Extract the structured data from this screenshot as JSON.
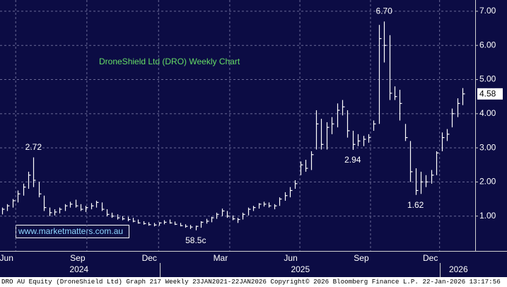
{
  "chart_data": {
    "type": "ohlc",
    "title": "DroneShield Ltd (DRO) Weekly Chart",
    "watermark": "www.marketmatters.com.au",
    "source": "DRO AU Equity (DroneShield Ltd) Graph 217 Weekly 23JAN2021-22JAN2026 Copyright© 2026 Bloomberg Finance L.P. 22-Jan-2026 13:17:56",
    "color": "#ffffff",
    "high": [
      1.25,
      1.35,
      1.5,
      1.75,
      1.95,
      2.3,
      2.72,
      2.0,
      1.6,
      1.25,
      1.2,
      1.25,
      1.35,
      1.42,
      1.48,
      1.35,
      1.3,
      1.38,
      1.45,
      1.4,
      1.2,
      1.1,
      1.05,
      1.0,
      0.98,
      0.95,
      0.9,
      0.85,
      0.82,
      0.8,
      0.82,
      0.88,
      0.9,
      0.84,
      0.8,
      0.76,
      0.74,
      0.72,
      0.85,
      0.92,
      0.98,
      1.1,
      1.22,
      1.15,
      1.02,
      0.95,
      1.1,
      1.25,
      1.3,
      1.38,
      1.42,
      1.4,
      1.35,
      1.55,
      1.7,
      1.85,
      2.05,
      2.6,
      2.65,
      2.9,
      4.1,
      3.85,
      3.75,
      3.9,
      4.3,
      4.4,
      4.1,
      3.5,
      3.4,
      3.35,
      3.4,
      3.8,
      6.6,
      6.7,
      6.3,
      4.8,
      4.7,
      3.7,
      3.2,
      2.4,
      2.3,
      2.2,
      2.35,
      2.9,
      3.45,
      3.55,
      4.15,
      4.45,
      4.75
    ],
    "low": [
      1.05,
      1.15,
      1.25,
      1.4,
      1.6,
      1.8,
      1.85,
      1.55,
      1.15,
      1.0,
      1.02,
      1.08,
      1.15,
      1.25,
      1.25,
      1.15,
      1.12,
      1.2,
      1.25,
      1.15,
      1.0,
      0.95,
      0.9,
      0.88,
      0.85,
      0.82,
      0.78,
      0.75,
      0.72,
      0.7,
      0.72,
      0.76,
      0.78,
      0.74,
      0.7,
      0.66,
      0.62,
      0.585,
      0.66,
      0.78,
      0.82,
      0.92,
      1.0,
      0.95,
      0.88,
      0.8,
      0.9,
      1.02,
      1.15,
      1.22,
      1.28,
      1.25,
      1.2,
      1.3,
      1.45,
      1.55,
      1.8,
      2.2,
      2.3,
      2.35,
      2.95,
      2.95,
      2.95,
      3.4,
      3.6,
      3.95,
      3.3,
      2.94,
      3.05,
      3.05,
      3.15,
      3.5,
      3.7,
      5.5,
      4.4,
      4.4,
      3.8,
      3.2,
      2.0,
      1.62,
      1.65,
      1.85,
      1.95,
      2.2,
      2.9,
      3.2,
      3.6,
      3.9,
      4.25
    ],
    "close": [
      1.2,
      1.3,
      1.45,
      1.65,
      1.85,
      2.2,
      2.05,
      1.65,
      1.25,
      1.1,
      1.12,
      1.2,
      1.3,
      1.35,
      1.3,
      1.2,
      1.25,
      1.3,
      1.4,
      1.2,
      1.05,
      1.0,
      0.95,
      0.92,
      0.9,
      0.85,
      0.8,
      0.78,
      0.75,
      0.74,
      0.8,
      0.82,
      0.8,
      0.76,
      0.72,
      0.7,
      0.68,
      0.7,
      0.82,
      0.85,
      0.95,
      1.05,
      1.15,
      1.0,
      0.92,
      0.9,
      1.05,
      1.2,
      1.25,
      1.35,
      1.35,
      1.3,
      1.3,
      1.5,
      1.6,
      1.75,
      1.95,
      2.5,
      2.4,
      2.8,
      3.7,
      3.1,
      3.6,
      3.7,
      4.1,
      4.2,
      3.5,
      3.1,
      3.2,
      3.25,
      3.3,
      3.7,
      6.2,
      6.0,
      4.6,
      4.5,
      4.3,
      3.3,
      2.3,
      1.75,
      2.0,
      2.0,
      2.2,
      2.85,
      3.3,
      3.4,
      4.0,
      4.3,
      4.58
    ],
    "annotations": [
      2.72,
      {
        "value": 6.7,
        "label": "6.70"
      },
      2.94,
      1.62,
      {
        "value": 0.585,
        "label": "58.5c"
      }
    ],
    "last_price": 4.58,
    "xlim": [
      -0.4,
      90.4
    ],
    "xticks": [
      {
        "value": 2.6,
        "label": "Jun"
      },
      {
        "value": 16.2,
        "label": "Sep"
      },
      {
        "value": 29.9,
        "label": "Dec"
      },
      {
        "value": 43.5,
        "label": "Mar"
      },
      {
        "value": 56.9,
        "label": "Jun"
      },
      {
        "value": 70.4,
        "label": "Sep"
      },
      {
        "value": 83.6,
        "label": "Dec"
      }
    ],
    "year_ticks": [
      {
        "value": 14.7,
        "label": "2024"
      },
      {
        "value": 57,
        "label": "2025"
      },
      {
        "value": 87.2,
        "label": "2026"
      }
    ],
    "ylim": [
      0,
      7.33
    ],
    "yticks": [
      {
        "value": 1,
        "label": "1.00"
      },
      {
        "value": 2,
        "label": "2.00"
      },
      {
        "value": 3,
        "label": "3.00"
      },
      {
        "value": 4,
        "label": "4.00"
      },
      {
        "value": 5,
        "label": "5.00"
      },
      {
        "value": 6,
        "label": "6.00"
      },
      {
        "value": 7,
        "label": "7.00"
      }
    ],
    "grid": true
  }
}
